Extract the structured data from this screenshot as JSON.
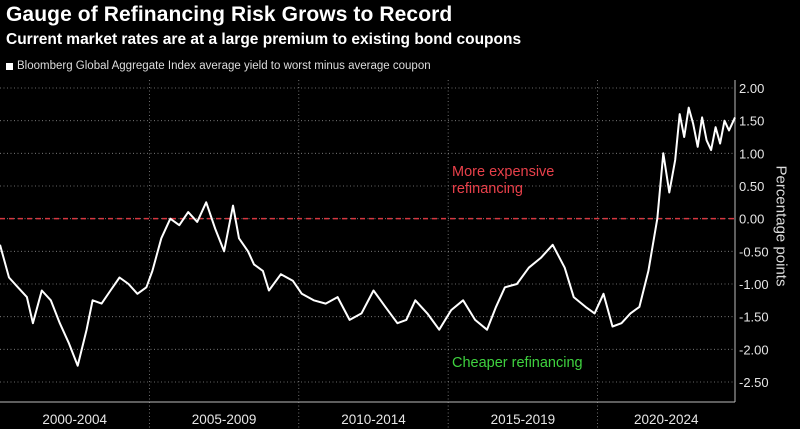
{
  "header": {
    "title": "Gauge of Refinancing Risk Grows to Record",
    "subtitle": "Current market rates are at a large premium to existing bond coupons"
  },
  "chart_data": {
    "type": "line",
    "series_label": "Bloomberg Global Aggregate Index average yield to worst minus average coupon",
    "ylabel": "Percentage points",
    "ylim": [
      -2.5,
      2.0
    ],
    "xlim": [
      2000.0,
      2024.6
    ],
    "yticks": [
      2.0,
      1.5,
      1.0,
      0.5,
      0.0,
      -0.5,
      -1.0,
      -1.5,
      -2.0,
      -2.5
    ],
    "ytick_labels": [
      "2.00",
      "1.50",
      "1.00",
      "0.50",
      "0.00",
      "-0.50",
      "-1.00",
      "-1.50",
      "-2.00",
      "-2.50"
    ],
    "period_labels": [
      "2000-2004",
      "2005-2009",
      "2010-2014",
      "2015-2019",
      "2020-2024"
    ],
    "period_boundaries": [
      2005,
      2010,
      2015,
      2020
    ],
    "reference_line": {
      "y": 0,
      "color": "#d7373f"
    },
    "annotations": [
      {
        "text": "More expensive\nrefinancing",
        "color": "#e8404a"
      },
      {
        "text": "Cheaper refinancing",
        "color": "#3fd23f"
      }
    ],
    "grid": true,
    "x": [
      2000.0,
      2000.3,
      2000.6,
      2000.9,
      2001.1,
      2001.4,
      2001.7,
      2002.0,
      2002.3,
      2002.6,
      2002.9,
      2003.1,
      2003.4,
      2003.7,
      2004.0,
      2004.3,
      2004.6,
      2004.9,
      2005.1,
      2005.4,
      2005.7,
      2006.0,
      2006.3,
      2006.6,
      2006.9,
      2007.2,
      2007.5,
      2007.8,
      2008.0,
      2008.3,
      2008.5,
      2008.8,
      2009.0,
      2009.4,
      2009.8,
      2010.1,
      2010.5,
      2010.9,
      2011.3,
      2011.7,
      2012.1,
      2012.5,
      2012.9,
      2013.3,
      2013.6,
      2013.9,
      2014.3,
      2014.7,
      2015.1,
      2015.5,
      2015.9,
      2016.3,
      2016.6,
      2016.9,
      2017.3,
      2017.7,
      2018.1,
      2018.5,
      2018.9,
      2019.2,
      2019.6,
      2019.9,
      2020.2,
      2020.5,
      2020.8,
      2021.1,
      2021.4,
      2021.7,
      2022.0,
      2022.2,
      2022.4,
      2022.6,
      2022.75,
      2022.9,
      2023.05,
      2023.2,
      2023.35,
      2023.5,
      2023.65,
      2023.8,
      2023.95,
      2024.1,
      2024.25,
      2024.4,
      2024.6
    ],
    "values": [
      -0.4,
      -0.9,
      -1.05,
      -1.2,
      -1.6,
      -1.1,
      -1.25,
      -1.6,
      -1.9,
      -2.25,
      -1.7,
      -1.25,
      -1.3,
      -1.1,
      -0.9,
      -1.0,
      -1.15,
      -1.05,
      -0.8,
      -0.3,
      0.0,
      -0.1,
      0.1,
      -0.05,
      0.25,
      -0.15,
      -0.5,
      0.2,
      -0.3,
      -0.5,
      -0.7,
      -0.8,
      -1.1,
      -0.85,
      -0.95,
      -1.15,
      -1.25,
      -1.3,
      -1.2,
      -1.55,
      -1.45,
      -1.1,
      -1.35,
      -1.6,
      -1.55,
      -1.25,
      -1.45,
      -1.7,
      -1.4,
      -1.25,
      -1.55,
      -1.7,
      -1.35,
      -1.05,
      -1.0,
      -0.75,
      -0.6,
      -0.4,
      -0.75,
      -1.2,
      -1.35,
      -1.45,
      -1.15,
      -1.65,
      -1.6,
      -1.45,
      -1.35,
      -0.8,
      0.0,
      1.0,
      0.4,
      0.9,
      1.6,
      1.25,
      1.7,
      1.45,
      1.1,
      1.55,
      1.2,
      1.05,
      1.4,
      1.15,
      1.5,
      1.35,
      1.55
    ]
  }
}
